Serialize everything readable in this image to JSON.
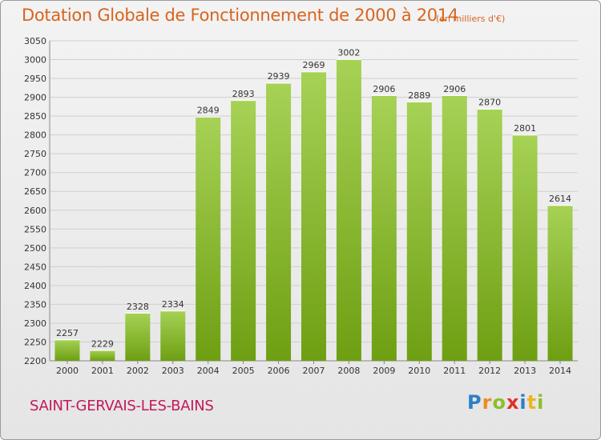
{
  "chart_data": {
    "type": "bar",
    "title": "Dotation Globale de Fonctionnement de 2000 à 2014",
    "unit_label": "(en milliers d'€)",
    "categories": [
      "2000",
      "2001",
      "2002",
      "2003",
      "2004",
      "2005",
      "2006",
      "2007",
      "2008",
      "2009",
      "2010",
      "2011",
      "2012",
      "2013",
      "2014"
    ],
    "values": [
      2257,
      2229,
      2328,
      2334,
      2849,
      2893,
      2939,
      2969,
      3002,
      2906,
      2889,
      2906,
      2870,
      2801,
      2614
    ],
    "ylim": [
      2200,
      3050
    ],
    "yticks": [
      2200,
      2250,
      2300,
      2350,
      2400,
      2450,
      2500,
      2550,
      2600,
      2650,
      2700,
      2750,
      2800,
      2850,
      2900,
      2950,
      3000,
      3050
    ],
    "xlabel": "",
    "ylabel": "",
    "grid": true,
    "bar_color_top": "#a6d256",
    "bar_color_bottom": "#6e9f12"
  },
  "footer": {
    "commune": "SAINT-GERVAIS-LES-BAINS",
    "logo_letters": [
      "P",
      "r",
      "o",
      "x",
      "i",
      "t",
      "i"
    ],
    "logo_colors": [
      "#2e7fc7",
      "#f08a1c",
      "#8bbf2a",
      "#e0302a",
      "#2e7fc7",
      "#f0b41c",
      "#8bbf2a"
    ]
  }
}
